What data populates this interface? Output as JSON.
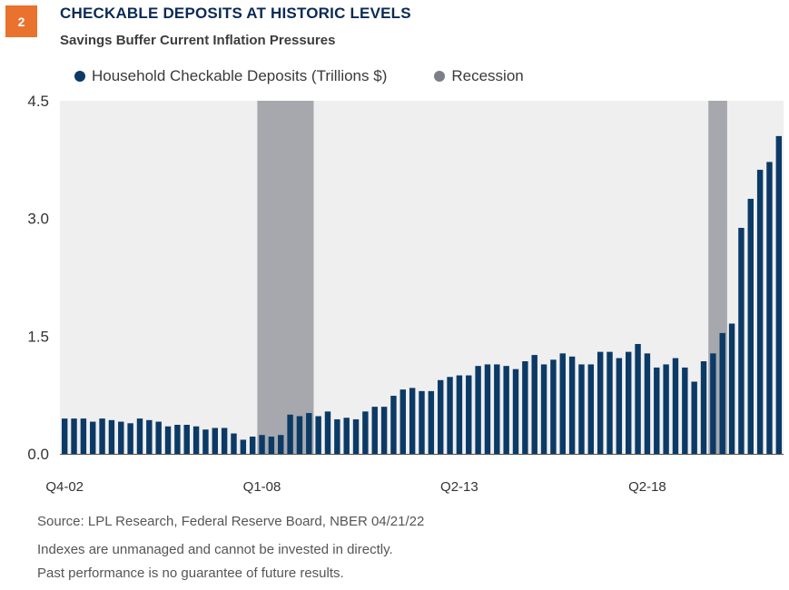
{
  "badge": "2",
  "title": "CHECKABLE DEPOSITS AT HISTORIC LEVELS",
  "subtitle": "Savings Buffer Current Inflation Pressures",
  "source": "Source: LPL Research, Federal Reserve Board, NBER  04/21/22",
  "disclaimer_1": "Indexes are unmanaged and cannot be invested in directly.",
  "disclaimer_2": "Past performance is no guarantee of future results.",
  "colors": {
    "bar": "#0b3a66",
    "recession": "#a6a8ad",
    "recession_legend": "#7c7f86",
    "plot_bg": "#efefef",
    "badge": "#e9722e"
  },
  "chart_data": {
    "type": "bar",
    "title": "CHECKABLE DEPOSITS AT HISTORIC LEVELS",
    "subtitle": "Savings Buffer Current Inflation Pressures",
    "ylim": [
      0,
      4.5
    ],
    "yticks": [
      "0.0",
      "1.5",
      "3.0",
      "4.5"
    ],
    "xtick_labels": [
      "Q4-02",
      "Q1-08",
      "Q2-13",
      "Q2-18"
    ],
    "xtick_index": [
      0,
      21,
      42,
      62
    ],
    "legend_position": "top",
    "grid": false,
    "series": [
      {
        "name": "Household Checkable Deposits (Trillions $)",
        "values": [
          0.45,
          0.45,
          0.45,
          0.41,
          0.45,
          0.43,
          0.41,
          0.39,
          0.45,
          0.43,
          0.41,
          0.35,
          0.37,
          0.37,
          0.35,
          0.31,
          0.33,
          0.33,
          0.26,
          0.18,
          0.22,
          0.24,
          0.22,
          0.24,
          0.5,
          0.48,
          0.52,
          0.48,
          0.54,
          0.44,
          0.46,
          0.44,
          0.54,
          0.6,
          0.6,
          0.74,
          0.82,
          0.84,
          0.8,
          0.8,
          0.94,
          0.98,
          1.0,
          1.0,
          1.12,
          1.14,
          1.14,
          1.12,
          1.08,
          1.18,
          1.26,
          1.14,
          1.2,
          1.28,
          1.24,
          1.14,
          1.14,
          1.3,
          1.3,
          1.22,
          1.3,
          1.4,
          1.28,
          1.1,
          1.14,
          1.22,
          1.1,
          0.92,
          1.18,
          1.28,
          1.54,
          1.66,
          2.88,
          3.25,
          3.62,
          3.72,
          4.05
        ]
      }
    ],
    "recessions": [
      {
        "name": "Recession",
        "start_index": 21,
        "end_index": 26
      },
      {
        "name": "Recession",
        "start_index": 69,
        "end_index": 70
      }
    ]
  }
}
